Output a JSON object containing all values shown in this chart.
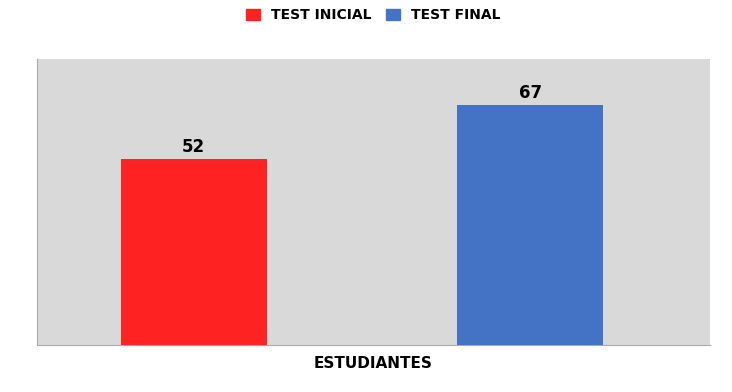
{
  "categories": [
    "TEST INICIAL",
    "TEST FINAL"
  ],
  "values": [
    52,
    67
  ],
  "bar_colors": [
    "#ff2222",
    "#4472c4"
  ],
  "bar_positions": [
    1,
    2.5
  ],
  "bar_width": 0.65,
  "xlabel": "ESTUDIANTES",
  "xlabel_fontsize": 11,
  "legend_labels": [
    "TEST INICIAL",
    "TEST FINAL"
  ],
  "legend_colors": [
    "#ff2222",
    "#4472c4"
  ],
  "legend_fontsize": 10,
  "ylim": [
    0,
    80
  ],
  "plot_bg_color": "#d9d9d9",
  "fig_bg_color": "#ffffff",
  "annotation_fontsize": 12,
  "annotation_fontweight": "bold",
  "xlim": [
    0.3,
    3.3
  ]
}
